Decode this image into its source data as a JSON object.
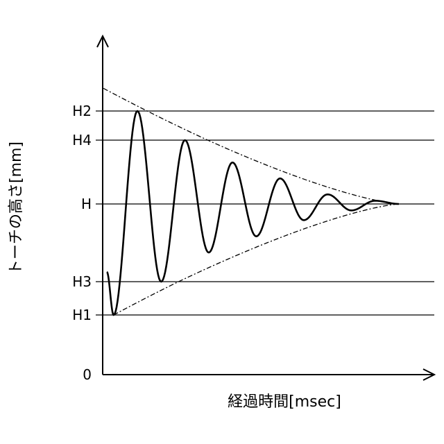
{
  "chart_data": {
    "type": "line",
    "title": "",
    "xlabel": "経過時間[msec]",
    "ylabel": "トーチの高さ[mm]",
    "x_ticks": [],
    "y_levels": [
      {
        "label": "H2",
        "value": 4.0
      },
      {
        "label": "H4",
        "value": 3.55
      },
      {
        "label": "H",
        "value": 2.55
      },
      {
        "label": "H3",
        "value": 1.35
      },
      {
        "label": "H1",
        "value": 0.85
      },
      {
        "label": "0",
        "value": 0
      }
    ],
    "ylim": [
      0,
      5
    ],
    "grid": "horizontal lines at labeled levels",
    "series": [
      {
        "style": "solid",
        "description_points": [
          {
            "x": 0.0,
            "y": 1.5
          },
          {
            "x": 0.1,
            "y": 0.85
          },
          {
            "x": 0.45,
            "y": 4.0
          },
          {
            "x": 0.8,
            "y": 1.35
          },
          {
            "x": 1.15,
            "y": 3.55
          },
          {
            "x": 1.5,
            "y": 1.8
          },
          {
            "x": 1.85,
            "y": 3.2
          },
          {
            "x": 2.2,
            "y": 2.05
          },
          {
            "x": 2.55,
            "y": 2.95
          },
          {
            "x": 2.9,
            "y": 2.3
          },
          {
            "x": 3.25,
            "y": 2.7
          },
          {
            "x": 3.6,
            "y": 2.45
          },
          {
            "x": 3.95,
            "y": 2.6
          },
          {
            "x": 4.3,
            "y": 2.55
          }
        ]
      },
      {
        "style": "dash-dot",
        "role": "upper envelope"
      },
      {
        "style": "dash-dot",
        "role": "lower envelope"
      }
    ]
  }
}
